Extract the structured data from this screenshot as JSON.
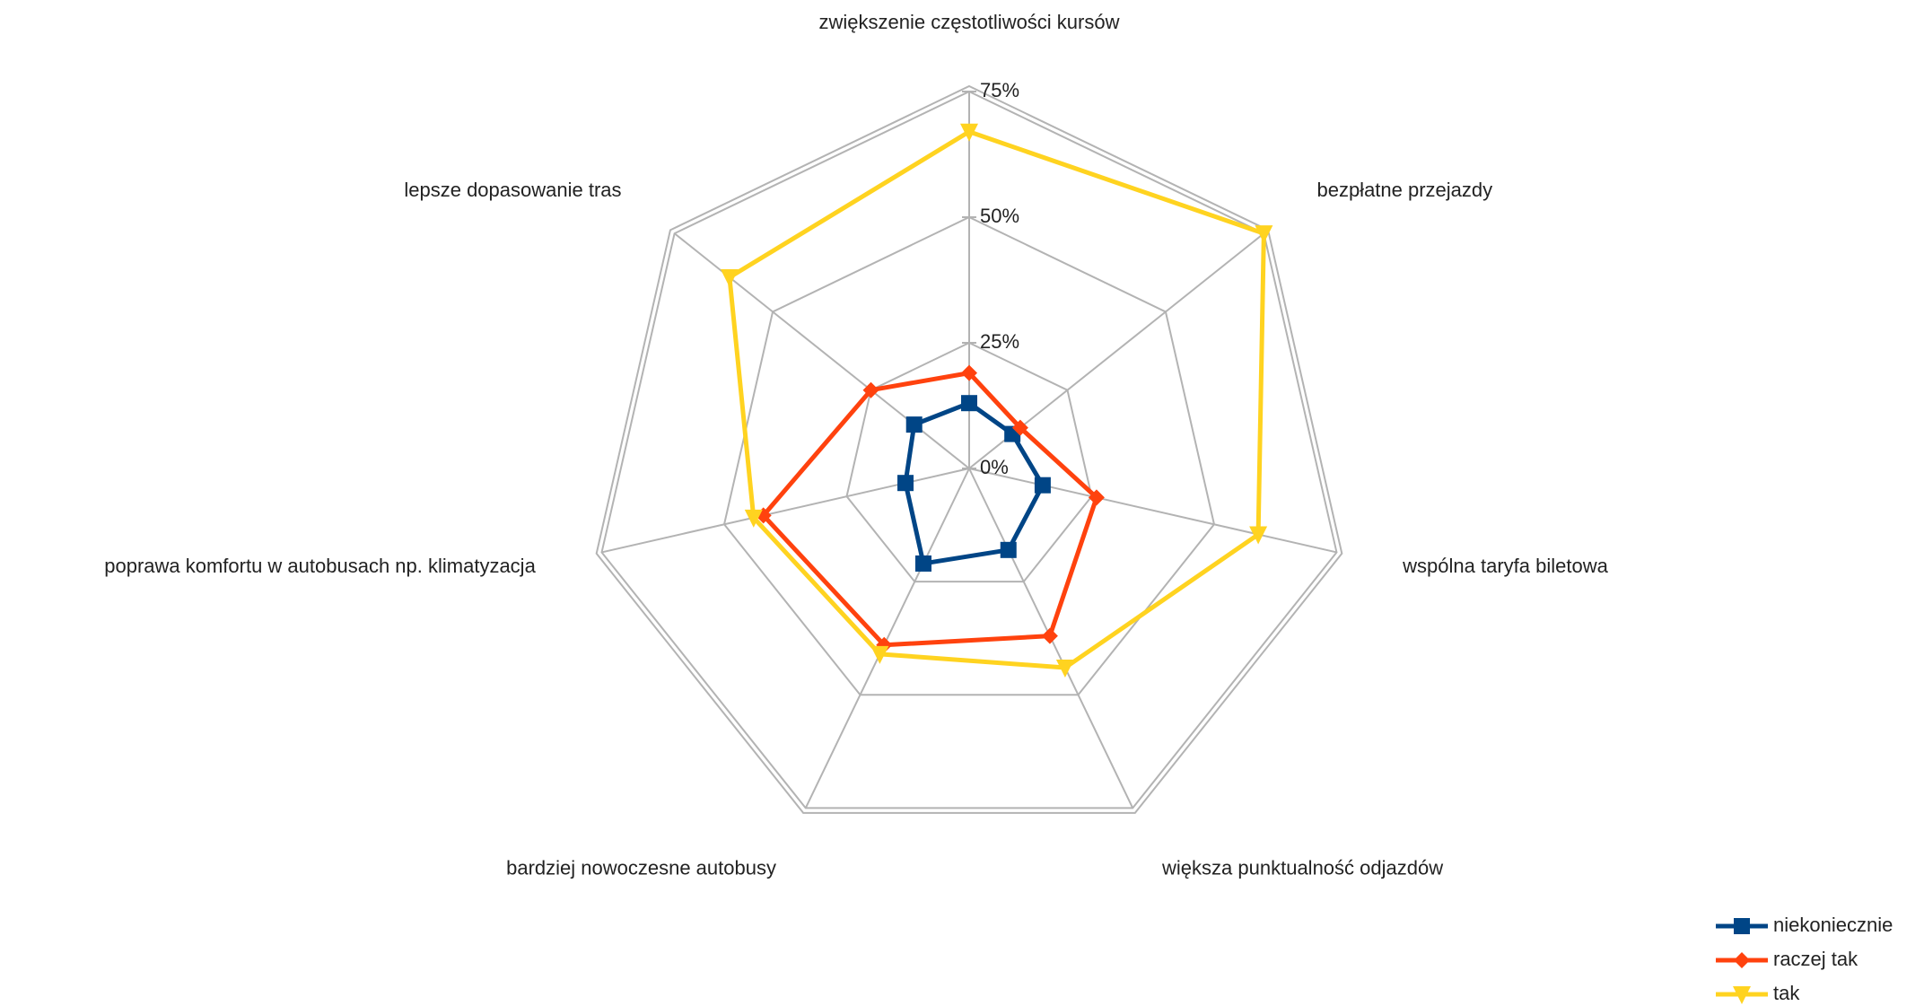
{
  "chart_data": {
    "type": "radar",
    "categories": [
      "zwiększenie częstotliwości kursów",
      "bezpłatne przejazdy",
      "wspólna taryfa biletowa",
      "większa punktualność odjazdów",
      "bardziej nowoczesne autobusy",
      "poprawa komfortu w autobusach np. klimatyzacja",
      "lepsze dopasowanie tras"
    ],
    "series": [
      {
        "name": "niekoniecznie",
        "color": "#004586",
        "marker": "square",
        "values": [
          13,
          11,
          15,
          18,
          21,
          13,
          14
        ]
      },
      {
        "name": "raczej tak",
        "color": "#ff420e",
        "marker": "diamond",
        "values": [
          19,
          13,
          26,
          37,
          39,
          42,
          25
        ]
      },
      {
        "name": "tak",
        "color": "#ffd320",
        "marker": "triangle-down",
        "values": [
          67,
          75,
          59,
          44,
          41,
          44,
          61
        ]
      }
    ],
    "ylim": [
      0,
      75
    ],
    "yticks": [
      {
        "value": 0,
        "label": "0%"
      },
      {
        "value": 25,
        "label": "25%"
      },
      {
        "value": 50,
        "label": "50%"
      },
      {
        "value": 75,
        "label": "75%"
      }
    ],
    "grid": true,
    "legend": "bottom-right"
  }
}
